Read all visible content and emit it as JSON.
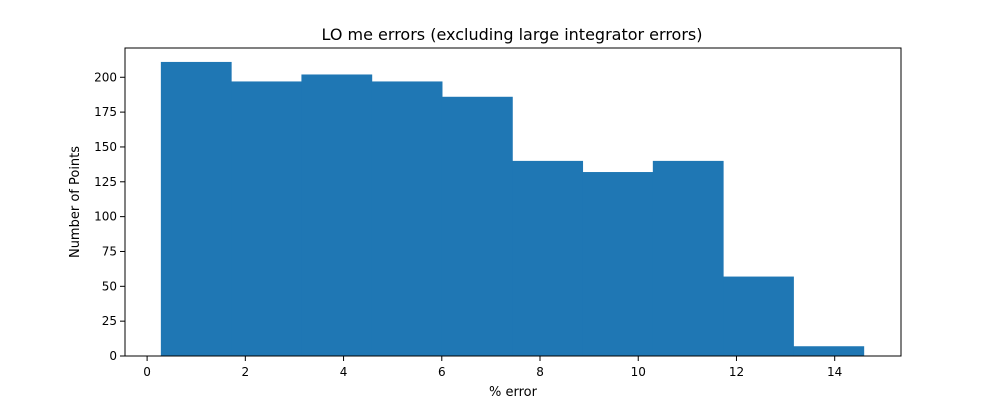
{
  "chart_data": {
    "type": "bar",
    "title": "LO me errors (excluding large integrator errors)",
    "xlabel": "% error",
    "ylabel": "Number of Points",
    "xlim": [
      -0.45,
      15.35
    ],
    "ylim": [
      0,
      221
    ],
    "x_ticks": [
      0,
      2,
      4,
      6,
      8,
      10,
      12,
      14
    ],
    "y_ticks": [
      0,
      25,
      50,
      75,
      100,
      125,
      150,
      175,
      200
    ],
    "bin_edges": [
      0.28,
      1.711,
      3.142,
      4.573,
      6.004,
      7.435,
      8.866,
      10.297,
      11.728,
      13.159,
      14.59
    ],
    "values": [
      211,
      197,
      202,
      197,
      186,
      140,
      132,
      140,
      57,
      7
    ],
    "color": "#1f77b4",
    "grid": false,
    "legend": "none"
  }
}
